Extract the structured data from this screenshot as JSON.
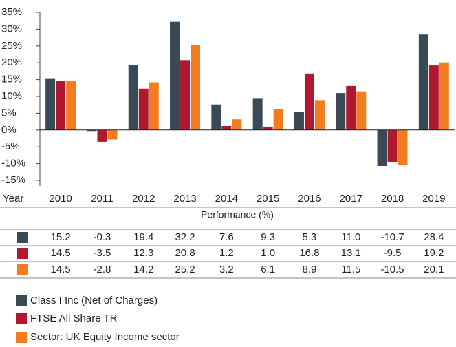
{
  "chart_data": {
    "type": "bar",
    "categories": [
      "2010",
      "2011",
      "2012",
      "2013",
      "2014",
      "2015",
      "2016",
      "2017",
      "2018",
      "2019"
    ],
    "xlabel": "Year",
    "table_title": "Performance (%)",
    "series": [
      {
        "name": "Class I Inc (Net of Charges)",
        "color": "#374a56",
        "values": [
          15.2,
          -0.3,
          19.4,
          32.2,
          7.6,
          9.3,
          5.3,
          11.0,
          -10.7,
          28.4
        ],
        "value_labels": [
          "15.2",
          "-0.3",
          "19.4",
          "32.2",
          "7.6",
          "9.3",
          "5.3",
          "11.0",
          "-10.7",
          "28.4"
        ]
      },
      {
        "name": "FTSE All Share TR",
        "color": "#b0182f",
        "values": [
          14.5,
          -3.5,
          12.3,
          20.8,
          1.2,
          1.0,
          16.8,
          13.1,
          -9.5,
          19.2
        ],
        "value_labels": [
          "14.5",
          "-3.5",
          "12.3",
          "20.8",
          "1.2",
          "1.0",
          "16.8",
          "13.1",
          "-9.5",
          "19.2"
        ]
      },
      {
        "name": "Sector: UK Equity Income sector",
        "color": "#f47c20",
        "values": [
          14.5,
          -2.8,
          14.2,
          25.2,
          3.2,
          6.1,
          8.9,
          11.5,
          -10.5,
          20.1
        ],
        "value_labels": [
          "14.5",
          "-2.8",
          "14.2",
          "25.2",
          "3.2",
          "6.1",
          "8.9",
          "11.5",
          "-10.5",
          "20.1"
        ]
      }
    ],
    "ylim": [
      -15,
      35
    ],
    "yticks": [
      {
        "value": -15,
        "label": "-15%"
      },
      {
        "value": -10,
        "label": "-10%"
      },
      {
        "value": -5,
        "label": "-5%"
      },
      {
        "value": 0,
        "label": "0%"
      },
      {
        "value": 5,
        "label": "5%"
      },
      {
        "value": 10,
        "label": "10%"
      },
      {
        "value": 15,
        "label": "15%"
      },
      {
        "value": 20,
        "label": "20%"
      },
      {
        "value": 25,
        "label": "25%"
      },
      {
        "value": 30,
        "label": "30%"
      },
      {
        "value": 35,
        "label": "35%"
      }
    ]
  }
}
